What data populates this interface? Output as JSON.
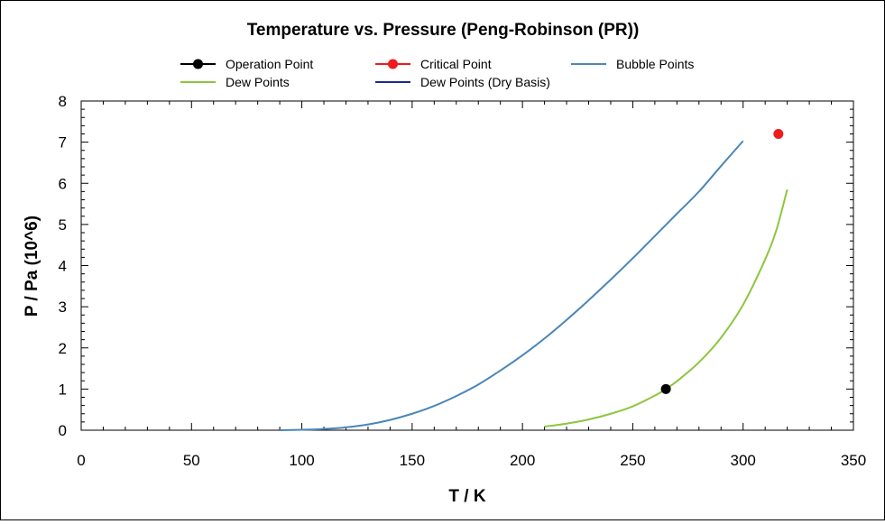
{
  "chart_data": {
    "type": "line",
    "title": "Temperature vs. Pressure (Peng-Robinson (PR))",
    "xlabel": "T / K",
    "ylabel": "P / Pa (10^6)",
    "xlim": [
      0,
      350
    ],
    "ylim": [
      0,
      8
    ],
    "x_ticks": [
      "0",
      "50",
      "100",
      "150",
      "200",
      "250",
      "300",
      "350"
    ],
    "y_ticks": [
      "0",
      "1",
      "2",
      "3",
      "4",
      "5",
      "6",
      "7",
      "8"
    ],
    "grid": false,
    "legend_position": "top",
    "series": [
      {
        "name": "Operation Point",
        "kind": "point",
        "color": "#000000",
        "x": [
          265
        ],
        "y": [
          1.0
        ]
      },
      {
        "name": "Critical Point",
        "kind": "point",
        "color": "#ee1c1c",
        "x": [
          316
        ],
        "y": [
          7.2
        ]
      },
      {
        "name": "Bubble Points",
        "kind": "line",
        "color": "#4a86b8",
        "x": [
          90,
          100,
          110,
          120,
          130,
          140,
          150,
          160,
          170,
          180,
          190,
          200,
          210,
          220,
          230,
          240,
          250,
          260,
          270,
          280,
          290,
          300
        ],
        "y": [
          0.0,
          0.01,
          0.03,
          0.07,
          0.14,
          0.25,
          0.4,
          0.59,
          0.83,
          1.11,
          1.45,
          1.82,
          2.23,
          2.68,
          3.16,
          3.66,
          4.18,
          4.72,
          5.26,
          5.8,
          6.42,
          7.03
        ]
      },
      {
        "name": "Dew Points",
        "kind": "line",
        "color": "#8dc63f",
        "x": [
          210,
          220,
          230,
          240,
          250,
          260,
          265,
          270,
          280,
          290,
          300,
          310,
          315,
          320
        ],
        "y": [
          0.09,
          0.16,
          0.26,
          0.4,
          0.58,
          0.84,
          1.0,
          1.19,
          1.65,
          2.25,
          3.05,
          4.15,
          4.85,
          5.85
        ]
      },
      {
        "name": "Dew Points (Dry Basis)",
        "kind": "line",
        "color": "#1c2a8c",
        "x": [],
        "y": []
      }
    ]
  }
}
